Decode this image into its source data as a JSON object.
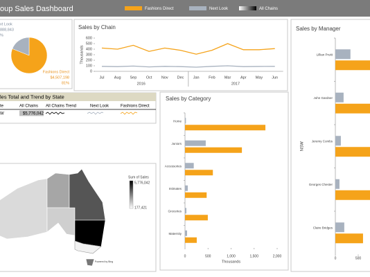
{
  "header": {
    "title": "oup Sales Dashboard",
    "legend": [
      {
        "label": "Fashions Direct",
        "color": "#f5a31a"
      },
      {
        "label": "Next Look",
        "color": "#a8b2bf"
      },
      {
        "label": "All Chains",
        "color": "#000000"
      }
    ]
  },
  "chart_data": [
    {
      "type": "pie",
      "names": [
        "Fashions Direct",
        "xt Look"
      ],
      "values": [
        81,
        19
      ],
      "value_labels": [
        "81%",
        "%"
      ],
      "amount_labels": [
        "$4,507,198",
        "888,843"
      ],
      "colors": [
        "#f5a31a",
        "#a8b2bf"
      ]
    },
    {
      "type": "line",
      "title": "Sales by Chain",
      "y_label": "Thousands",
      "categories": [
        "Jul",
        "Aug",
        "Sep",
        "Oct",
        "Nov",
        "Dec",
        "Jan",
        "Feb",
        "Mar",
        "Apr",
        "May",
        "Jun"
      ],
      "groups": [
        "2016",
        "2017"
      ],
      "series": [
        {
          "color": "#f5a31a",
          "values": [
            420,
            400,
            470,
            360,
            420,
            380,
            310,
            380,
            500,
            390,
            390,
            410
          ]
        },
        {
          "color": "#a8b2bf",
          "values": [
            90,
            85,
            95,
            80,
            90,
            85,
            75,
            90,
            100,
            85,
            88,
            90
          ]
        }
      ],
      "ylim": [
        0,
        600
      ],
      "yticks": [
        0,
        100,
        200,
        300,
        400,
        500,
        600
      ]
    },
    {
      "type": "hbar",
      "title": "Sales by Category",
      "x_label": "Thousands",
      "categories": [
        "Home",
        "Juniors",
        "Accessories",
        "Intimates",
        "Groceries",
        "Maternity"
      ],
      "series": [
        {
          "color": "#a8b2bf",
          "values": [
            20,
            450,
            190,
            60,
            30,
            45
          ]
        },
        {
          "color": "#f5a31a",
          "values": [
            1745,
            1235,
            605,
            470,
            495,
            255
          ]
        }
      ],
      "xlim": [
        0,
        2000
      ],
      "xticks": [
        0,
        500,
        {
          "value": 1000,
          "label": "1,000"
        },
        {
          "value": 1500,
          "label": "1,500"
        },
        {
          "value": 2000,
          "label": "2,000"
        }
      ]
    },
    {
      "type": "hbar",
      "title": "Sales by Manager",
      "y_label": "NSW",
      "categories": [
        "Lillian Pruitt",
        "John Gardner",
        "Jeremy Combs",
        "Georges Chester",
        "Claire Bridges"
      ],
      "series": [
        {
          "color": "#a8b2bf",
          "values": [
            330,
            180,
            120,
            90,
            195
          ]
        },
        {
          "color": "#f5a31a",
          "values": [
            900,
            850,
            800,
            830,
            605
          ]
        }
      ],
      "xlim": [
        0,
        1000
      ],
      "xticks": [
        0,
        500
      ]
    }
  ],
  "table": {
    "title": "les Total and Trend by State",
    "columns": [
      "te",
      "All Chains",
      "All Chains Trend",
      "Next Look",
      "Fashions Direct"
    ],
    "rows": [
      [
        "W",
        "$5,776,042"
      ]
    ]
  },
  "map": {
    "legend_title": "Sum of Sales",
    "legend_max": "5,776,042",
    "legend_min": "177,421",
    "credit": "Powered by Bing"
  }
}
